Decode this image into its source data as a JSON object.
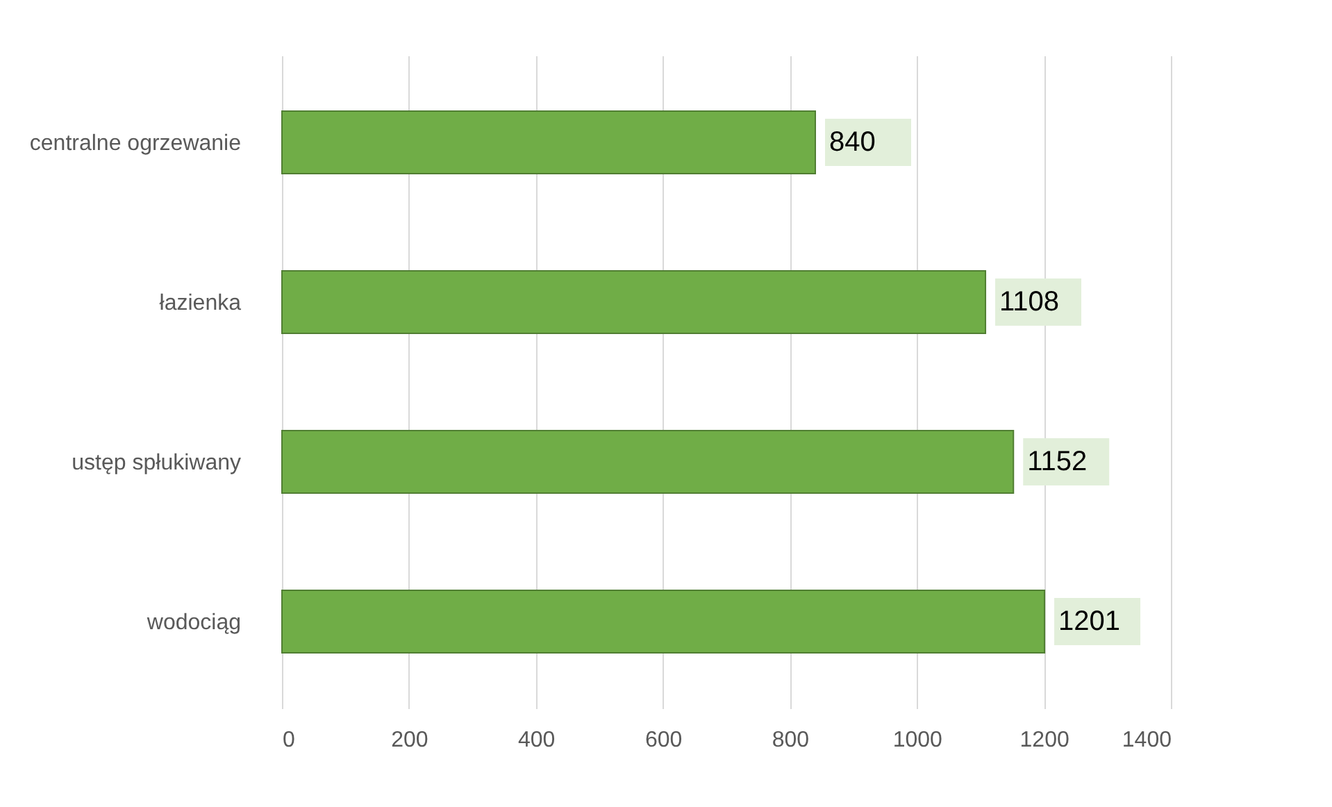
{
  "chart_data": {
    "type": "bar",
    "orientation": "horizontal",
    "categories": [
      "centralne ogrzewanie",
      "łazienka",
      "ustęp spłukiwany",
      "wodociąg"
    ],
    "values": [
      840,
      1108,
      1152,
      1201
    ],
    "color": "#70ad47",
    "xlim": [
      0,
      1400
    ],
    "xticks": [
      0,
      200,
      400,
      600,
      800,
      1000,
      1200,
      1400
    ],
    "grid": "x",
    "data_labels": true
  }
}
